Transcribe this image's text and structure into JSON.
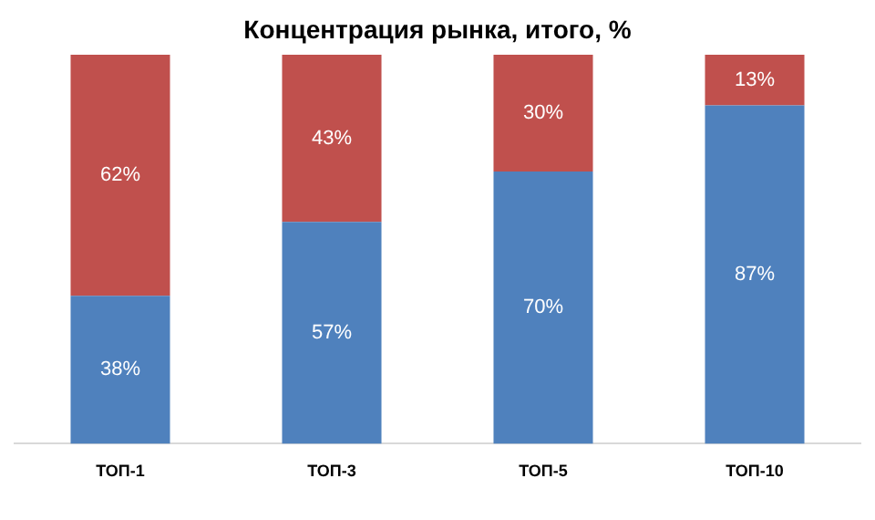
{
  "chart_data": {
    "type": "bar",
    "title": "Концентрация рынка, итого, %",
    "categories": [
      "ТОП-1",
      "ТОП-3",
      "ТОП-5",
      "ТОП-10"
    ],
    "stacked": true,
    "series": [
      {
        "color": "#4f81bd",
        "values": [
          38,
          57,
          70,
          87
        ],
        "value_labels": [
          "38%",
          "57%",
          "70%",
          "87%"
        ]
      },
      {
        "color": "#c0504d",
        "values": [
          62,
          43,
          30,
          13
        ],
        "value_labels": [
          "62%",
          "43%",
          "30%",
          "13%"
        ]
      }
    ],
    "grid": false,
    "legend": false
  }
}
